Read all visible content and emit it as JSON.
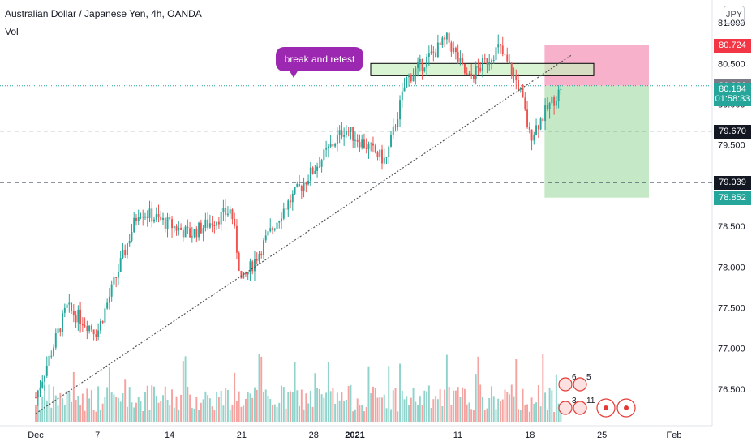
{
  "header": {
    "title": "Australian Dollar / Japanese Yen, 4h, OANDA",
    "volume_label": "Vol",
    "currency": "JPY"
  },
  "annotation": {
    "text": "break and retest"
  },
  "price_labels": [
    {
      "text": "80.724",
      "color": "#f23645",
      "price": 80.724
    },
    {
      "text": "80.226",
      "color": "#787b86",
      "price": 80.226
    },
    {
      "text": "80.184",
      "color": "#26a69a",
      "price": 80.184
    },
    {
      "text": "01:58:33",
      "color": "#26a69a",
      "price": 80.06
    },
    {
      "text": "79.670",
      "color": "#131722",
      "price": 79.67
    },
    {
      "text": "79.039",
      "color": "#131722",
      "price": 79.039
    },
    {
      "text": "78.852",
      "color": "#26a69a",
      "price": 78.852
    }
  ],
  "chart_data": {
    "type": "candlestick",
    "title": "Australian Dollar / Japanese Yen, 4h, OANDA",
    "ylim": [
      76.1,
      81.2
    ],
    "y_ticks": [
      "81.000",
      "80.500",
      "80.000",
      "79.500",
      "79.000",
      "78.500",
      "78.000",
      "77.500",
      "77.000",
      "76.500"
    ],
    "y_tick_values": [
      81.0,
      80.5,
      80.0,
      79.5,
      79.0,
      78.5,
      78.0,
      77.5,
      77.0,
      76.5
    ],
    "x_ticks": [
      "Dec",
      "7",
      "14",
      "21",
      "28",
      "2021",
      "11",
      "18",
      "25",
      "Feb"
    ],
    "series_anchor_points": [
      {
        "label": "Dec 1",
        "close": 76.4
      },
      {
        "label": "Dec 4",
        "close": 77.5
      },
      {
        "label": "Dec 7",
        "close": 77.2
      },
      {
        "label": "Dec 11",
        "close": 78.7
      },
      {
        "label": "Dec 16",
        "close": 78.4
      },
      {
        "label": "Dec 20",
        "close": 78.7
      },
      {
        "label": "Dec 21",
        "close": 77.8
      },
      {
        "label": "Dec 25",
        "close": 78.7
      },
      {
        "label": "Dec 31",
        "close": 79.7
      },
      {
        "label": "Jan 4",
        "close": 79.3
      },
      {
        "label": "Jan 6",
        "close": 80.3
      },
      {
        "label": "Jan 10",
        "close": 80.8
      },
      {
        "label": "Jan 12",
        "close": 80.3
      },
      {
        "label": "Jan 15",
        "close": 80.7
      },
      {
        "label": "Jan 17",
        "close": 80.2
      },
      {
        "label": "Jan 18",
        "close": 79.6
      },
      {
        "label": "Jan 20",
        "close": 80.0
      },
      {
        "label": "Jan 21",
        "close": 80.18
      }
    ],
    "horizontal_levels": [
      79.67,
      79.039
    ],
    "current_price": 80.184,
    "last_price": 80.226,
    "position": {
      "entry": 80.226,
      "stop": 80.724,
      "target": 78.852
    },
    "resistance_zone": [
      80.35,
      80.5
    ],
    "trendline": {
      "from": {
        "label": "Dec 1",
        "price": 76.2
      },
      "to": {
        "label": "Jan 22",
        "price": 80.6
      }
    },
    "volume": {
      "panel": "bottom",
      "unit": "Vol"
    },
    "grid": false
  },
  "colors": {
    "up": "#26a69a",
    "down": "#ef5350",
    "volume_up": "#8fd3cb",
    "volume_down": "#f5a3a1",
    "stop_zone": "#f7a8c4",
    "target_zone": "#bfe5c0",
    "resistance_zone": "#c8f0c0",
    "dashed": "#1e2448",
    "dotted": "#555555"
  },
  "event_markers": [
    "6",
    "5",
    "3",
    "11"
  ]
}
